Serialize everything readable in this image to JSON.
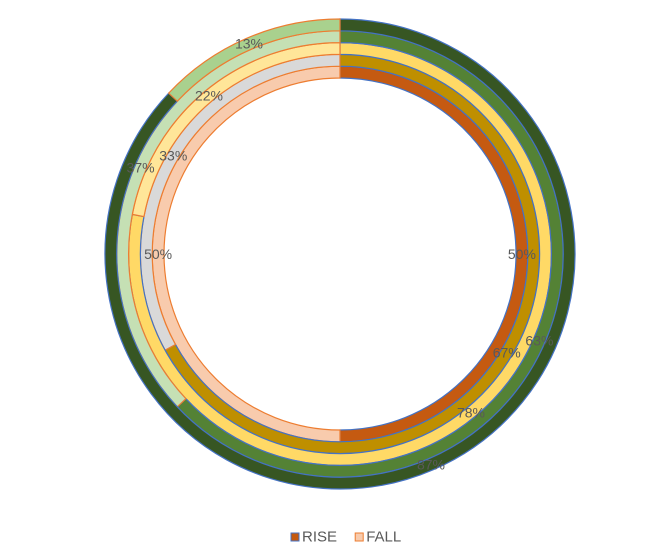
{
  "chart_data": {
    "type": "doughnut",
    "series": [
      {
        "ring": 1,
        "values": [
          50,
          50
        ],
        "labels": [
          "50%",
          "50%"
        ],
        "colors": [
          "#C55A11",
          "#F8CBAD"
        ]
      },
      {
        "ring": 2,
        "values": [
          67,
          33
        ],
        "labels": [
          "67%",
          "33%"
        ],
        "colors": [
          "#BF8F00",
          "#D9D9D9"
        ]
      },
      {
        "ring": 3,
        "values": [
          78,
          22
        ],
        "labels": [
          "78%",
          "22%"
        ],
        "colors": [
          "#FFD966",
          "#FFE699"
        ]
      },
      {
        "ring": 4,
        "values": [
          63,
          37
        ],
        "labels": [
          "63%",
          "37%"
        ],
        "colors": [
          "#548235",
          "#C5E0B4"
        ]
      },
      {
        "ring": 5,
        "values": [
          87,
          13
        ],
        "labels": [
          "87%",
          "13%"
        ],
        "colors": [
          "#375623",
          "#A9D18E"
        ]
      }
    ],
    "legend": {
      "placement": "bottom",
      "entries": [
        {
          "name": "RISE",
          "color": "#C55A11"
        },
        {
          "name": "FALL",
          "color": "#F8CBAD"
        }
      ]
    },
    "style": {
      "rise_border": "#4472C4",
      "fall_border": "#ED7D31",
      "label_color": "#595959"
    }
  }
}
